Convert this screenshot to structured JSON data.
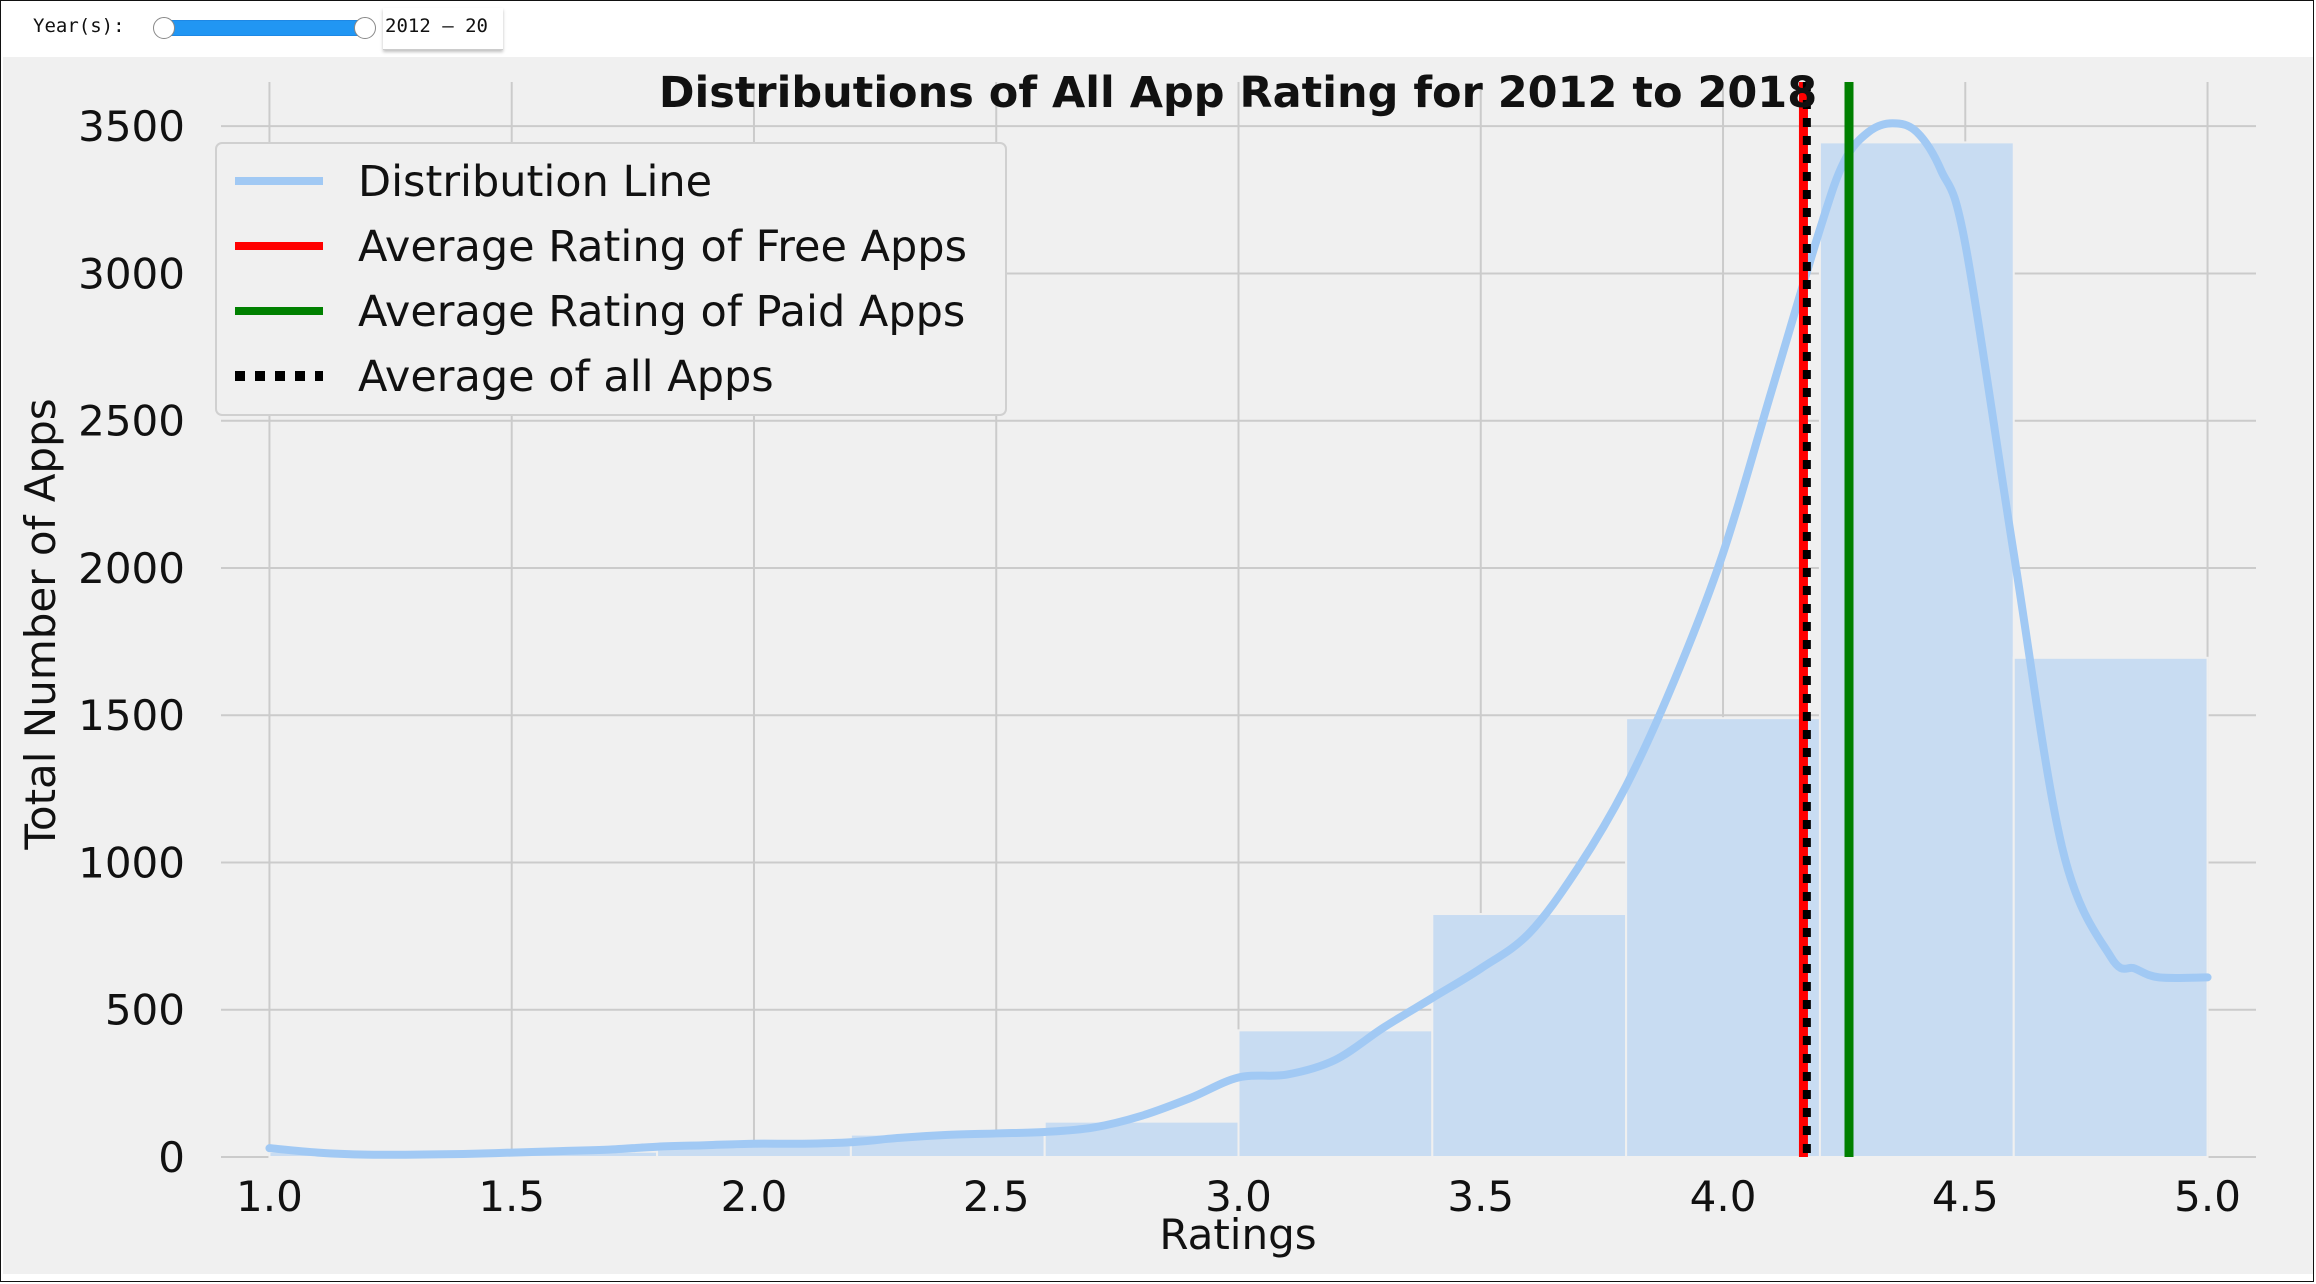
{
  "widget": {
    "label": "Year(s):",
    "readout": "2012 – 20",
    "range_fraction": [
      0,
      1
    ],
    "track_color": "#2196f3"
  },
  "chart_data": {
    "type": "bar",
    "title": "Distributions of All App Rating for 2012 to 2018",
    "xlabel": "Ratings",
    "ylabel": "Total Number of Apps",
    "xlim": [
      0.9,
      5.1
    ],
    "ylim": [
      0,
      3650
    ],
    "xticks": [
      "1.0",
      "1.5",
      "2.0",
      "2.5",
      "3.0",
      "3.5",
      "4.0",
      "4.5",
      "5.0"
    ],
    "yticks": [
      "0",
      "500",
      "1000",
      "1500",
      "2000",
      "2500",
      "3000",
      "3500"
    ],
    "grid": true,
    "legend_position": "top-left",
    "bins": [
      {
        "from": 1.0,
        "to": 1.4,
        "count": 17
      },
      {
        "from": 1.4,
        "to": 1.8,
        "count": 18
      },
      {
        "from": 1.8,
        "to": 2.2,
        "count": 40
      },
      {
        "from": 2.2,
        "to": 2.6,
        "count": 76
      },
      {
        "from": 2.6,
        "to": 3.0,
        "count": 120
      },
      {
        "from": 3.0,
        "to": 3.4,
        "count": 430
      },
      {
        "from": 3.4,
        "to": 3.8,
        "count": 825
      },
      {
        "from": 3.8,
        "to": 4.2,
        "count": 1490
      },
      {
        "from": 4.2,
        "to": 4.6,
        "count": 3445
      },
      {
        "from": 4.6,
        "to": 5.0,
        "count": 1695
      }
    ],
    "bar_color": "#c8dcf2",
    "series": [
      {
        "name": "Distribution Line",
        "color": "#a1c9f4",
        "x": [
          1.0,
          1.1,
          1.2,
          1.3,
          1.4,
          1.5,
          1.6,
          1.7,
          1.8,
          1.9,
          2.0,
          2.1,
          2.2,
          2.3,
          2.4,
          2.5,
          2.6,
          2.7,
          2.8,
          2.9,
          3.0,
          3.1,
          3.2,
          3.3,
          3.4,
          3.5,
          3.6,
          3.7,
          3.8,
          3.9,
          4.0,
          4.1,
          4.2,
          4.25,
          4.3,
          4.35,
          4.4,
          4.45,
          4.5,
          4.6,
          4.7,
          4.8,
          4.85,
          4.9,
          5.0
        ],
        "y": [
          30,
          15,
          8,
          8,
          10,
          15,
          20,
          25,
          35,
          40,
          45,
          45,
          50,
          65,
          75,
          80,
          85,
          100,
          140,
          200,
          270,
          280,
          330,
          440,
          540,
          640,
          760,
          980,
          1260,
          1620,
          2050,
          2600,
          3150,
          3380,
          3480,
          3510,
          3480,
          3350,
          3100,
          2050,
          1050,
          680,
          640,
          610,
          610
        ]
      },
      {
        "name": "Average Rating of Free Apps",
        "color": "#ff0000",
        "x": 4.166
      },
      {
        "name": "Average Rating of Paid Apps",
        "color": "#008000",
        "x": 4.26
      },
      {
        "name": "Average of all Apps",
        "color": "#000000",
        "x": 4.173,
        "style": "dotted"
      }
    ]
  }
}
